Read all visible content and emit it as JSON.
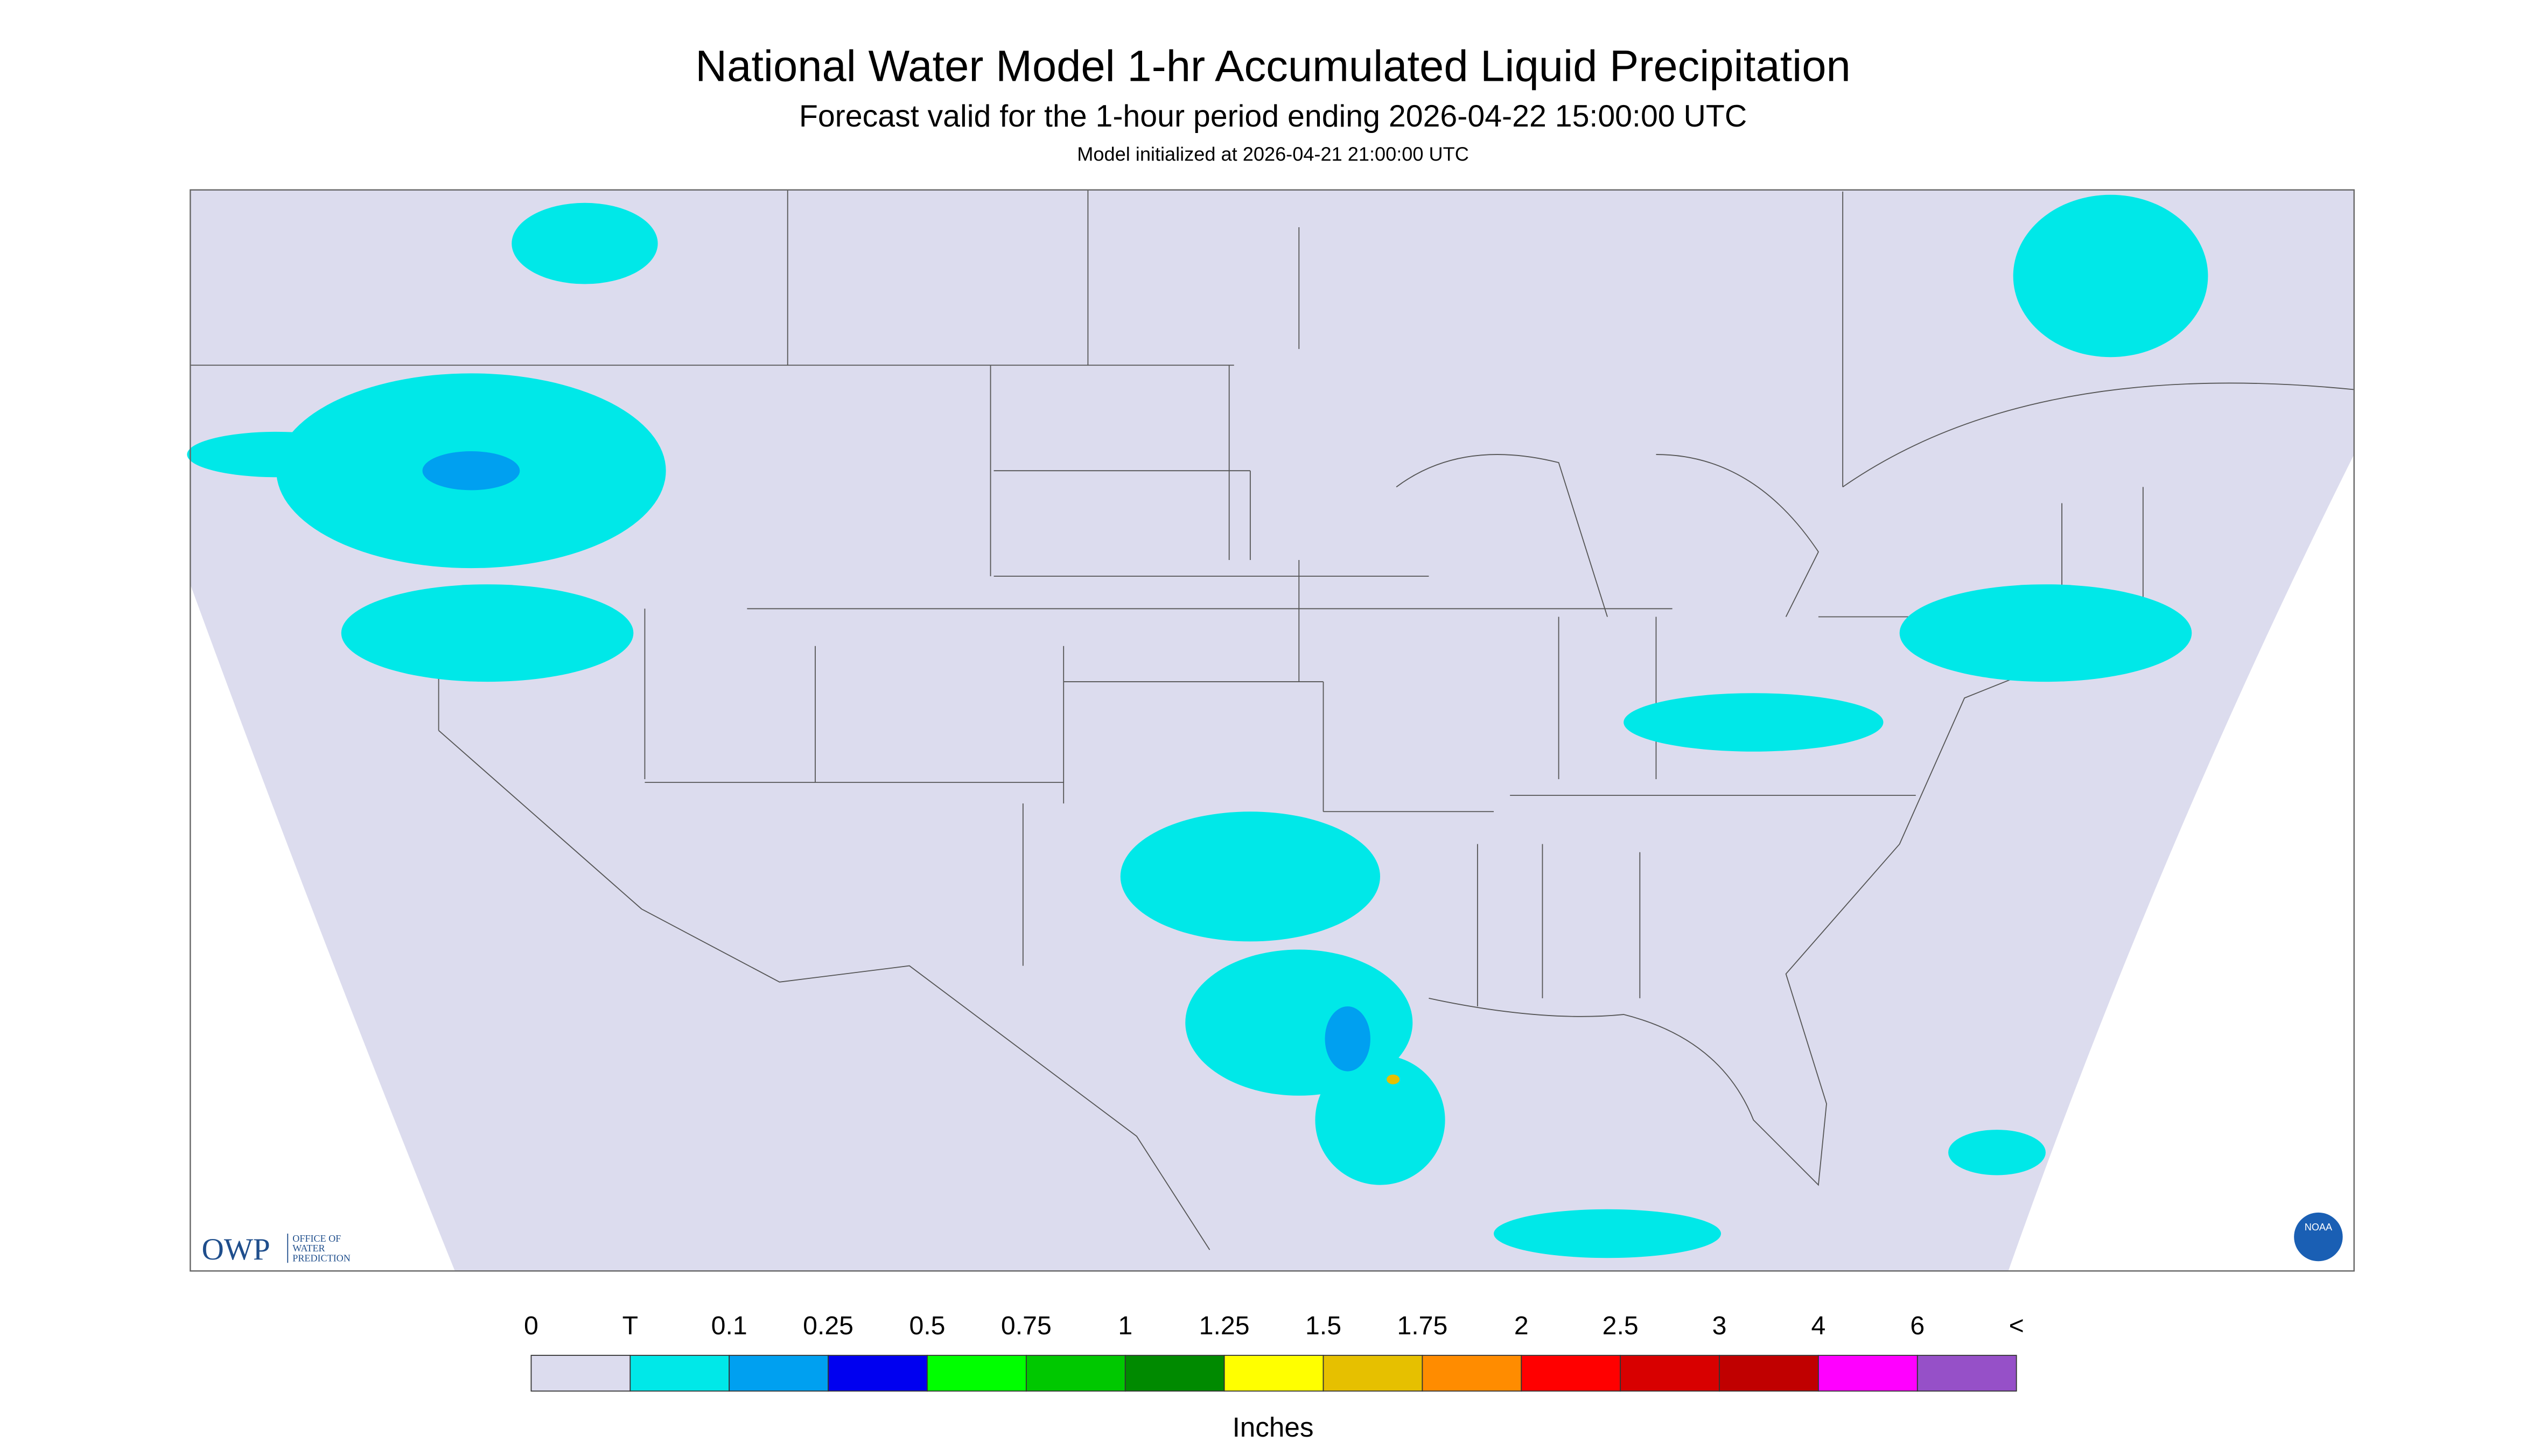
{
  "header": {
    "title": "National Water Model 1-hr Accumulated Liquid Precipitation",
    "subtitle": "Forecast valid for the 1-hour period ending 2026-04-22 15:00:00 UTC",
    "initialized": "Model initialized at 2026-04-21 21:00:00 UTC"
  },
  "legend": {
    "labels": [
      "0",
      "T",
      "0.1",
      "0.25",
      "0.5",
      "0.75",
      "1",
      "1.25",
      "1.5",
      "1.75",
      "2",
      "2.5",
      "3",
      "4",
      "6",
      "<"
    ],
    "colors": [
      "#dcdcee",
      "#00e8e8",
      "#00a0f0",
      "#0000f0",
      "#00ff00",
      "#00c800",
      "#008a00",
      "#ffff00",
      "#e6c000",
      "#ff8c00",
      "#ff0000",
      "#d80000",
      "#c00000",
      "#ff00ff",
      "#9650c8"
    ],
    "units": "Inches"
  },
  "logo": {
    "abbr": "OWP",
    "line1": "OFFICE OF",
    "line2": "WATER",
    "line3": "PREDICTION",
    "noaa": "NOAA"
  }
}
